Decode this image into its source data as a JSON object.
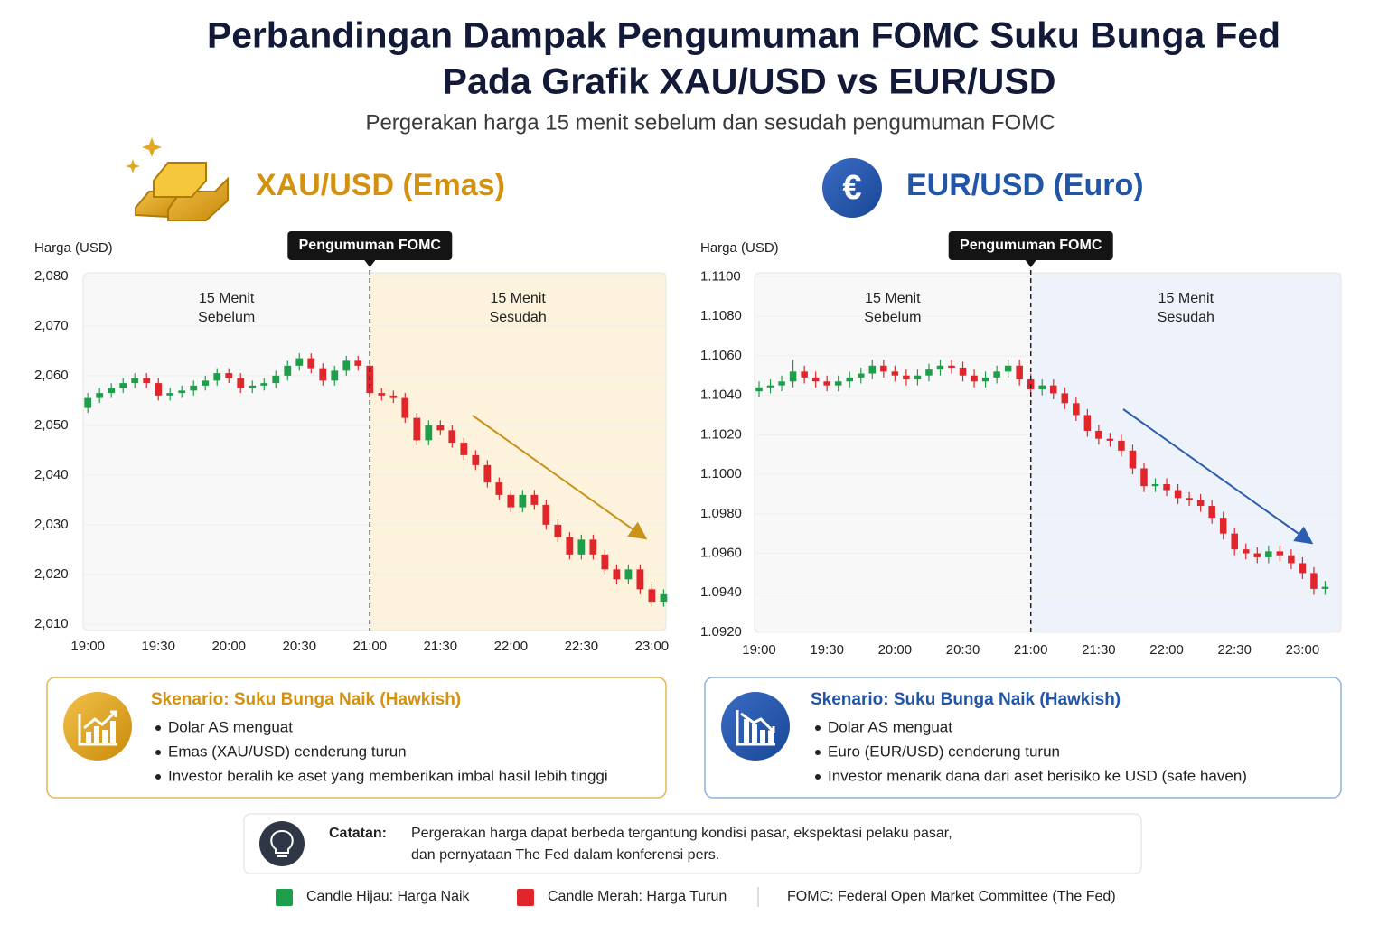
{
  "header": {
    "title": [
      "Perbandingan Dampak Pengumuman FOMC Suku Bunga Fed",
      "Pada Grafik XAU/USD vs EUR/USD"
    ],
    "subtitle": "Pergerakan harga 15 menit sebelum dan sesudah pengumuman FOMC"
  },
  "chart_data": [
    {
      "type": "candlestick",
      "title": "XAU/USD (Emas)",
      "y_label": "Harga (USD)",
      "up_color": "#1e9e4a",
      "down_color": "#e0252b",
      "shade_color": "#fdf3dc",
      "accent_color": "#c9921a",
      "xlim": [
        1138,
        1386
      ],
      "ylim": [
        2008.7,
        2080.7
      ],
      "xticks": [
        {
          "value": 1140,
          "label": "19:00"
        },
        {
          "value": 1170,
          "label": "19:30"
        },
        {
          "value": 1200,
          "label": "20:00"
        },
        {
          "value": 1230,
          "label": "20:30"
        },
        {
          "value": 1260,
          "label": "21:00"
        },
        {
          "value": 1290,
          "label": "21:30"
        },
        {
          "value": 1320,
          "label": "22:00"
        },
        {
          "value": 1350,
          "label": "22:30"
        },
        {
          "value": 1380,
          "label": "23:00"
        }
      ],
      "yticks": [
        {
          "value": 2010,
          "label": "2,010"
        },
        {
          "value": 2020,
          "label": "2,020"
        },
        {
          "value": 2030,
          "label": "2,030"
        },
        {
          "value": 2040,
          "label": "2,040"
        },
        {
          "value": 2050,
          "label": "2,050"
        },
        {
          "value": 2060,
          "label": "2,060"
        },
        {
          "value": 2070,
          "label": "2,070"
        },
        {
          "value": 2080,
          "label": "2,080"
        }
      ],
      "event": {
        "x": 1260,
        "label": "Pengumuman FOMC"
      },
      "before_label": [
        "15 Menit",
        "Sebelum"
      ],
      "after_label": [
        "15 Menit",
        "Sesudah"
      ],
      "x": [
        1140,
        1145,
        1150,
        1155,
        1160,
        1165,
        1170,
        1175,
        1180,
        1185,
        1190,
        1195,
        1200,
        1205,
        1210,
        1215,
        1220,
        1225,
        1230,
        1235,
        1240,
        1245,
        1250,
        1255,
        1260,
        1265,
        1270,
        1275,
        1280,
        1285,
        1290,
        1295,
        1300,
        1305,
        1310,
        1315,
        1320,
        1325,
        1330,
        1335,
        1340,
        1345,
        1350,
        1355,
        1360,
        1365,
        1370,
        1375,
        1380,
        1385
      ],
      "open": [
        2053.5,
        2055.5,
        2056.5,
        2057.5,
        2058.5,
        2059.5,
        2058.5,
        2056,
        2056.5,
        2057,
        2058,
        2059,
        2060.5,
        2059.5,
        2057.5,
        2058,
        2058.5,
        2060,
        2062,
        2063.5,
        2061.5,
        2059,
        2061,
        2063,
        2062,
        2056.5,
        2056,
        2055.5,
        2051.5,
        2047,
        2050,
        2049,
        2046.5,
        2044,
        2042,
        2038.5,
        2036,
        2033.5,
        2036,
        2034,
        2030,
        2027.5,
        2024,
        2027,
        2024,
        2021,
        2019,
        2021,
        2017,
        2014.5
      ],
      "high": [
        2056.5,
        2057.5,
        2058.5,
        2059.5,
        2060.5,
        2060.5,
        2059.5,
        2057.5,
        2058,
        2059,
        2060,
        2061.5,
        2061.5,
        2060.5,
        2059,
        2059.5,
        2061,
        2063,
        2064.5,
        2064.5,
        2062.5,
        2062,
        2064,
        2064,
        2063,
        2057.5,
        2057,
        2056.5,
        2052.5,
        2051,
        2051,
        2050,
        2047.5,
        2045,
        2043,
        2039.5,
        2037,
        2037,
        2037,
        2035,
        2031,
        2028.5,
        2028,
        2028,
        2025,
        2022,
        2022,
        2022,
        2018,
        2017
      ],
      "low": [
        2052.5,
        2054.5,
        2055.5,
        2056.5,
        2057.5,
        2057.5,
        2055,
        2055,
        2055.5,
        2056,
        2057,
        2058,
        2058.5,
        2056.5,
        2056.5,
        2057,
        2057.5,
        2059,
        2061,
        2060.5,
        2058,
        2058,
        2060,
        2061,
        2055.5,
        2055,
        2054.5,
        2050.5,
        2046,
        2046,
        2048,
        2045.5,
        2043,
        2041,
        2037.5,
        2035,
        2032.5,
        2032.5,
        2033,
        2029,
        2026.5,
        2023,
        2023,
        2023,
        2020,
        2018,
        2018,
        2016,
        2013.5,
        2013.5
      ],
      "close": [
        2055.5,
        2056.5,
        2057.5,
        2058.5,
        2059.5,
        2058.5,
        2056,
        2056.5,
        2057,
        2058,
        2059,
        2060.5,
        2059.5,
        2057.5,
        2058,
        2058.5,
        2060,
        2062,
        2063.5,
        2061.5,
        2059,
        2061,
        2063,
        2062,
        2056.5,
        2056,
        2055.5,
        2051.5,
        2047,
        2050,
        2049,
        2046.5,
        2044,
        2042,
        2038.5,
        2036,
        2033.5,
        2036,
        2034,
        2030,
        2027.5,
        2024,
        2027,
        2024,
        2021,
        2019,
        2021,
        2017,
        2014.5,
        2016
      ]
    },
    {
      "type": "candlestick",
      "title": "EUR/USD (Euro)",
      "y_label": "Harga (USD)",
      "up_color": "#1e9e4a",
      "down_color": "#e0252b",
      "shade_color": "#eef2fb",
      "accent_color": "#2a5db0",
      "xlim": [
        1138,
        1397
      ],
      "ylim": [
        1.092,
        1.1102
      ],
      "xticks": [
        {
          "value": 1140,
          "label": "19:00"
        },
        {
          "value": 1170,
          "label": "19:30"
        },
        {
          "value": 1200,
          "label": "20:00"
        },
        {
          "value": 1230,
          "label": "20:30"
        },
        {
          "value": 1260,
          "label": "21:00"
        },
        {
          "value": 1290,
          "label": "21:30"
        },
        {
          "value": 1320,
          "label": "22:00"
        },
        {
          "value": 1350,
          "label": "22:30"
        },
        {
          "value": 1380,
          "label": "23:00"
        }
      ],
      "yticks": [
        {
          "value": 1.092,
          "label": "1.0920"
        },
        {
          "value": 1.094,
          "label": "1.0940"
        },
        {
          "value": 1.096,
          "label": "1.0960"
        },
        {
          "value": 1.098,
          "label": "1.0980"
        },
        {
          "value": 1.1,
          "label": "1.1000"
        },
        {
          "value": 1.102,
          "label": "1.1020"
        },
        {
          "value": 1.104,
          "label": "1.1040"
        },
        {
          "value": 1.106,
          "label": "1.1060"
        },
        {
          "value": 1.108,
          "label": "1.1080"
        },
        {
          "value": 1.11,
          "label": "1.1100"
        }
      ],
      "event": {
        "x": 1260,
        "label": "Pengumuman FOMC"
      },
      "before_label": [
        "15 Menit",
        "Sebelum"
      ],
      "after_label": [
        "15 Menit",
        "Sesudah"
      ],
      "x": [
        1140,
        1145,
        1150,
        1155,
        1160,
        1165,
        1170,
        1175,
        1180,
        1185,
        1190,
        1195,
        1200,
        1205,
        1210,
        1215,
        1220,
        1225,
        1230,
        1235,
        1240,
        1245,
        1250,
        1255,
        1260,
        1265,
        1270,
        1275,
        1280,
        1285,
        1290,
        1295,
        1300,
        1305,
        1310,
        1315,
        1320,
        1325,
        1330,
        1335,
        1340,
        1345,
        1350,
        1355,
        1360,
        1365,
        1370,
        1375,
        1380,
        1385,
        1390
      ],
      "open": [
        1.1042,
        1.1044,
        1.1045,
        1.1047,
        1.1052,
        1.1049,
        1.1047,
        1.1045,
        1.1047,
        1.1049,
        1.1051,
        1.1055,
        1.1052,
        1.105,
        1.1048,
        1.105,
        1.1053,
        1.1055,
        1.1054,
        1.105,
        1.1047,
        1.1049,
        1.1052,
        1.1055,
        1.1048,
        1.1043,
        1.1045,
        1.1041,
        1.1036,
        1.103,
        1.1022,
        1.1018,
        1.1017,
        1.1012,
        1.1003,
        1.0994,
        1.0995,
        1.0992,
        1.0988,
        1.0987,
        1.0984,
        1.0978,
        1.097,
        1.0962,
        1.096,
        1.0958,
        1.0961,
        1.0959,
        1.0955,
        1.095,
        1.0942
      ],
      "high": [
        1.1047,
        1.1048,
        1.105,
        1.1058,
        1.1055,
        1.1052,
        1.105,
        1.105,
        1.1052,
        1.1054,
        1.1058,
        1.1058,
        1.1055,
        1.1053,
        1.1053,
        1.1056,
        1.1058,
        1.1058,
        1.1057,
        1.1053,
        1.1052,
        1.1055,
        1.1058,
        1.1058,
        1.1051,
        1.1048,
        1.1048,
        1.1044,
        1.1039,
        1.1033,
        1.1025,
        1.1021,
        1.102,
        1.1015,
        1.1006,
        1.0998,
        1.0998,
        1.0995,
        1.0991,
        1.099,
        1.0987,
        1.0981,
        1.0973,
        1.0965,
        1.0963,
        1.0964,
        1.0964,
        1.0962,
        1.0958,
        1.0953,
        1.0946
      ],
      "low": [
        1.1039,
        1.1041,
        1.1042,
        1.1044,
        1.1046,
        1.1044,
        1.1042,
        1.1042,
        1.1044,
        1.1046,
        1.1048,
        1.1049,
        1.1047,
        1.1045,
        1.1045,
        1.1047,
        1.105,
        1.1051,
        1.1047,
        1.1044,
        1.1044,
        1.1046,
        1.1049,
        1.1045,
        1.104,
        1.104,
        1.1038,
        1.1033,
        1.1027,
        1.1019,
        1.1015,
        1.1014,
        1.1009,
        1.1,
        1.0991,
        1.0991,
        1.0989,
        1.0985,
        1.0984,
        1.0981,
        1.0975,
        1.0967,
        1.0959,
        1.0957,
        1.0955,
        1.0955,
        1.0956,
        1.0952,
        1.0947,
        1.0939,
        1.0939
      ],
      "close": [
        1.1044,
        1.1045,
        1.1047,
        1.1052,
        1.1049,
        1.1047,
        1.1045,
        1.1047,
        1.1049,
        1.1051,
        1.1055,
        1.1052,
        1.105,
        1.1048,
        1.105,
        1.1053,
        1.1055,
        1.1054,
        1.105,
        1.1047,
        1.1049,
        1.1052,
        1.1055,
        1.1048,
        1.1043,
        1.1045,
        1.1041,
        1.1036,
        1.103,
        1.1022,
        1.1018,
        1.1017,
        1.1012,
        1.1003,
        1.0994,
        1.0995,
        1.0992,
        1.0988,
        1.0987,
        1.0984,
        1.0978,
        1.097,
        1.0962,
        1.096,
        1.0958,
        1.0961,
        1.0959,
        1.0955,
        1.095,
        1.0942,
        1.0943
      ]
    }
  ],
  "scenarios": [
    {
      "title": "Skenario: Suku Bunga Naik (Hawkish)",
      "bullets": [
        "Dolar AS menguat",
        "Emas (XAU/USD) cenderung turun",
        "Investor beralih ke aset yang memberikan imbal hasil lebih tinggi"
      ]
    },
    {
      "title": "Skenario: Suku Bunga Naik (Hawkish)",
      "bullets": [
        "Dolar AS menguat",
        "Euro (EUR/USD) cenderung turun",
        "Investor menarik dana dari aset berisiko ke USD (safe haven)"
      ]
    }
  ],
  "note": {
    "label": "Catatan:",
    "lines": [
      "Pergerakan harga dapat berbeda tergantung kondisi pasar, ekspektasi pelaku pasar,",
      "dan pernyataan The Fed dalam konferensi pers."
    ]
  },
  "legend": [
    {
      "color": "#1e9e4a",
      "label": "Candle Hijau: Harga Naik"
    },
    {
      "color": "#e0252b",
      "label": "Candle Merah: Harga Turun"
    }
  ],
  "footnote": "FOMC: Federal Open Market Committee (The Fed)"
}
